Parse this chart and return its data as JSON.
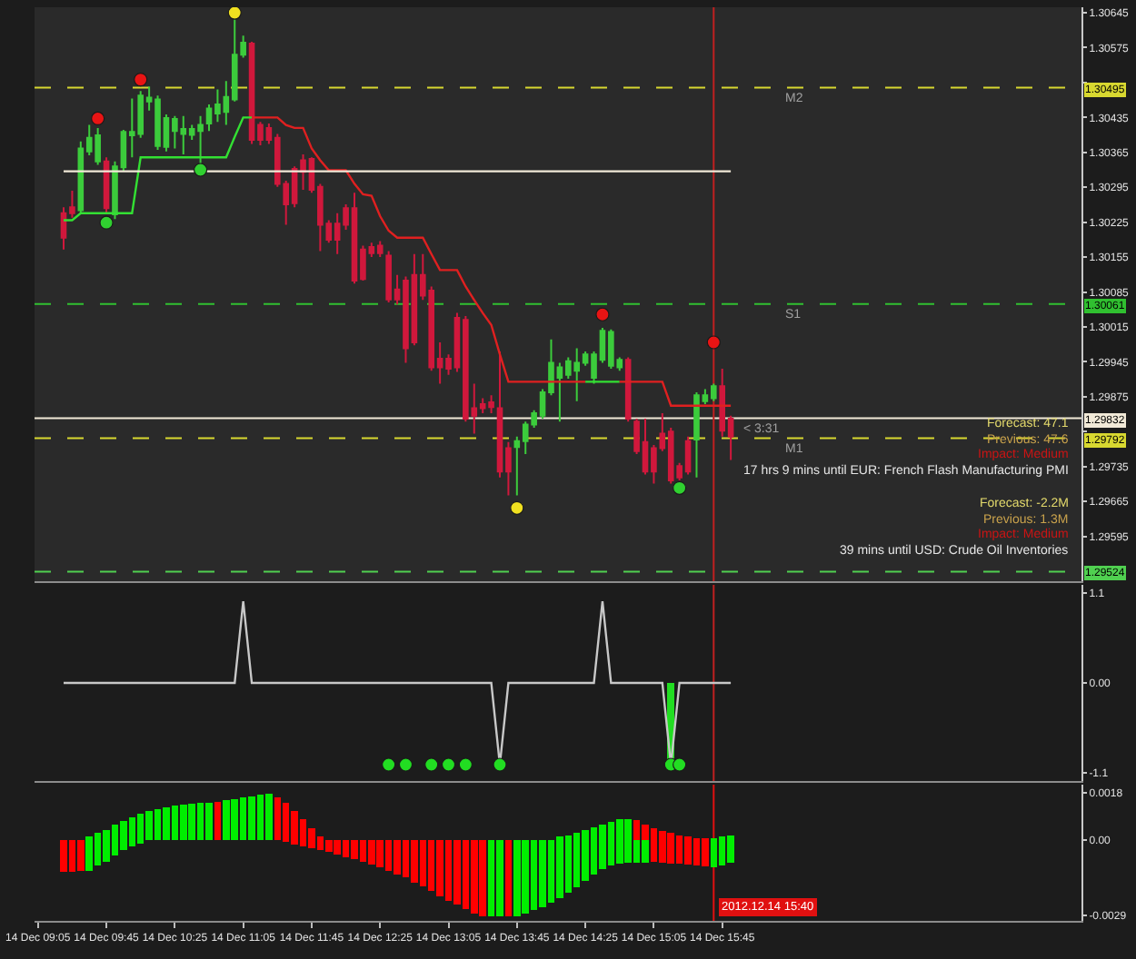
{
  "chart_data": [
    {
      "type": "candlestick",
      "x": [
        "2012-12-14T09:20",
        "2012-12-14T09:25",
        "2012-12-14T09:30",
        "2012-12-14T09:35",
        "2012-12-14T09:40",
        "2012-12-14T09:45",
        "2012-12-14T09:50",
        "2012-12-14T09:55",
        "2012-12-14T10:00",
        "2012-12-14T10:05",
        "2012-12-14T10:10",
        "2012-12-14T10:15",
        "2012-12-14T10:20",
        "2012-12-14T10:25",
        "2012-12-14T10:30",
        "2012-12-14T10:35",
        "2012-12-14T10:40",
        "2012-12-14T10:45",
        "2012-12-14T10:50",
        "2012-12-14T10:55",
        "2012-12-14T11:00",
        "2012-12-14T11:05",
        "2012-12-14T11:10",
        "2012-12-14T11:15",
        "2012-12-14T11:20",
        "2012-12-14T11:25",
        "2012-12-14T11:30",
        "2012-12-14T11:35",
        "2012-12-14T11:40",
        "2012-12-14T11:45",
        "2012-12-14T11:50",
        "2012-12-14T11:55",
        "2012-12-14T12:00",
        "2012-12-14T12:05",
        "2012-12-14T12:10",
        "2012-12-14T12:15",
        "2012-12-14T12:20",
        "2012-12-14T12:25",
        "2012-12-14T12:30",
        "2012-12-14T12:35",
        "2012-12-14T12:40",
        "2012-12-14T12:45",
        "2012-12-14T12:50",
        "2012-12-14T12:55",
        "2012-12-14T13:00",
        "2012-12-14T13:05",
        "2012-12-14T13:10",
        "2012-12-14T13:15",
        "2012-12-14T13:20",
        "2012-12-14T13:25",
        "2012-12-14T13:30",
        "2012-12-14T13:35",
        "2012-12-14T13:40",
        "2012-12-14T13:45",
        "2012-12-14T13:50",
        "2012-12-14T13:55",
        "2012-12-14T14:00",
        "2012-12-14T14:05",
        "2012-12-14T14:10",
        "2012-12-14T14:15",
        "2012-12-14T14:20",
        "2012-12-14T14:25",
        "2012-12-14T14:30",
        "2012-12-14T14:35",
        "2012-12-14T14:40",
        "2012-12-14T14:45",
        "2012-12-14T14:50",
        "2012-12-14T14:55",
        "2012-12-14T15:00",
        "2012-12-14T15:05",
        "2012-12-14T15:10",
        "2012-12-14T15:15",
        "2012-12-14T15:20",
        "2012-12-14T15:25",
        "2012-12-14T15:30",
        "2012-12-14T15:35",
        "2012-12-14T15:40",
        "2012-12-14T15:45",
        "2012-12-14T15:50"
      ],
      "ohlc": [
        [
          1.30243,
          1.30255,
          1.3017,
          1.30194
        ],
        [
          1.30255,
          1.30288,
          1.30234,
          1.30243
        ],
        [
          1.30249,
          1.30387,
          1.30243,
          1.30373
        ],
        [
          1.30367,
          1.3042,
          1.30359,
          1.30394
        ],
        [
          1.30347,
          1.30414,
          1.3034,
          1.30399
        ],
        [
          1.30347,
          1.30355,
          1.30243,
          1.30253
        ],
        [
          1.30241,
          1.30347,
          1.30231,
          1.30337
        ],
        [
          1.30335,
          1.3041,
          1.30328,
          1.30406
        ],
        [
          1.30399,
          1.30473,
          1.30355,
          1.30406
        ],
        [
          1.30402,
          1.30488,
          1.30394,
          1.30479
        ],
        [
          1.30467,
          1.30497,
          1.30449,
          1.30475
        ],
        [
          1.30378,
          1.30479,
          1.3037,
          1.30471
        ],
        [
          1.30376,
          1.30441,
          1.30367,
          1.30434
        ],
        [
          1.30408,
          1.30438,
          1.30373,
          1.30432
        ],
        [
          1.30402,
          1.30438,
          1.30361,
          1.30412
        ],
        [
          1.304,
          1.3042,
          1.3039,
          1.30412
        ],
        [
          1.30408,
          1.30438,
          1.30343,
          1.3042
        ],
        [
          1.30423,
          1.30461,
          1.30408,
          1.30453
        ],
        [
          1.30443,
          1.30491,
          1.30426,
          1.30461
        ],
        [
          1.30446,
          1.30508,
          1.3042,
          1.30476
        ],
        [
          1.30471,
          1.30632,
          1.30467,
          1.30561
        ],
        [
          1.30561,
          1.30599,
          1.30555,
          1.30585
        ],
        [
          1.30583,
          1.30587,
          1.30382,
          1.3039
        ],
        [
          1.3042,
          1.30426,
          1.30379,
          1.3039
        ],
        [
          1.30414,
          1.30423,
          1.30382,
          1.3039
        ],
        [
          1.30394,
          1.30402,
          1.30296,
          1.30302
        ],
        [
          1.30302,
          1.30308,
          1.3022,
          1.30261
        ],
        [
          1.30332,
          1.30337,
          1.30255,
          1.30263
        ],
        [
          1.30349,
          1.30361,
          1.3029,
          1.30326
        ],
        [
          1.30352,
          1.30355,
          1.30284,
          1.3029
        ],
        [
          1.30296,
          1.30302,
          1.30167,
          1.3022
        ],
        [
          1.30222,
          1.30229,
          1.30184,
          1.3019
        ],
        [
          1.30222,
          1.30243,
          1.30161,
          1.3019
        ],
        [
          1.30253,
          1.30261,
          1.3021,
          1.3022
        ],
        [
          1.30253,
          1.30284,
          1.30102,
          1.30108
        ],
        [
          1.3017,
          1.30178,
          1.30108,
          1.30111
        ],
        [
          1.30175,
          1.30184,
          1.30155,
          1.30163
        ],
        [
          1.30178,
          1.30187,
          1.30155,
          1.30163
        ],
        [
          1.30158,
          1.30167,
          1.30064,
          1.3007
        ],
        [
          1.3009,
          1.30119,
          1.3006,
          1.3007
        ],
        [
          1.30108,
          1.30116,
          1.29943,
          1.29972
        ],
        [
          1.30119,
          1.30161,
          1.29978,
          1.29984
        ],
        [
          1.30119,
          1.30161,
          1.30069,
          1.30078
        ],
        [
          1.30088,
          1.30096,
          1.29927,
          1.29934
        ],
        [
          1.29951,
          1.29984,
          1.29901,
          1.29934
        ],
        [
          1.29951,
          1.2996,
          1.29919,
          1.29931
        ],
        [
          1.30033,
          1.30043,
          1.29925,
          1.29934
        ],
        [
          1.30029,
          1.30037,
          1.29825,
          1.29831
        ],
        [
          1.29852,
          1.29901,
          1.29801,
          1.29837
        ],
        [
          1.2986,
          1.29872,
          1.29842,
          1.29852
        ],
        [
          1.29864,
          1.29878,
          1.29842,
          1.29854
        ],
        [
          1.29852,
          1.29966,
          1.29713,
          1.29725
        ],
        [
          1.29772,
          1.29784,
          1.29677,
          1.29725
        ],
        [
          1.29774,
          1.29795,
          1.29677,
          1.29786
        ],
        [
          1.29786,
          1.29825,
          1.2976,
          1.29819
        ],
        [
          1.29819,
          1.29848,
          1.29813,
          1.29842
        ],
        [
          1.29837,
          1.2989,
          1.29831,
          1.29884
        ],
        [
          1.29884,
          1.2999,
          1.29878,
          1.29943
        ],
        [
          1.29913,
          1.29943,
          1.29825,
          1.29934
        ],
        [
          1.29919,
          1.29954,
          1.29911,
          1.29946
        ],
        [
          1.29927,
          1.29972,
          1.29866,
          1.29943
        ],
        [
          1.29943,
          1.29966,
          1.29937,
          1.2996
        ],
        [
          1.29913,
          1.29966,
          1.29901,
          1.2996
        ],
        [
          1.29949,
          1.30013,
          1.29943,
          1.30007
        ],
        [
          1.29937,
          1.3001,
          1.29931,
          1.30005
        ],
        [
          1.29934,
          1.29954,
          1.29927,
          1.29949
        ],
        [
          1.29949,
          1.29954,
          1.29825,
          1.29831
        ],
        [
          1.29825,
          1.29831,
          1.2976,
          1.29766
        ],
        [
          1.29784,
          1.29831,
          1.29719,
          1.29725
        ],
        [
          1.29772,
          1.29778,
          1.29701,
          1.29725
        ],
        [
          1.29801,
          1.29842,
          1.29766,
          1.29772
        ],
        [
          1.29805,
          1.29813,
          1.29701,
          1.29707
        ],
        [
          1.29736,
          1.29742,
          1.29707,
          1.29713
        ],
        [
          1.29786,
          1.29795,
          1.29719,
          1.29725
        ],
        [
          1.29789,
          1.29884,
          1.29713,
          1.29878
        ],
        [
          1.29866,
          1.2989,
          1.2986,
          1.29878
        ],
        [
          1.29872,
          1.29901,
          1.29866,
          1.29896
        ],
        [
          1.29896,
          1.29931,
          1.29795,
          1.29807
        ],
        [
          1.29831,
          1.29837,
          1.29748,
          1.29795
        ]
      ],
      "colors": [
        "#d0183c",
        "#d0183c",
        "#3ccc3c",
        "#3ccc3c",
        "#3ccc3c",
        "#d0183c",
        "#3ccc3c",
        "#3ccc3c",
        "#3ccc3c",
        "#3ccc3c",
        "#3ccc3c",
        "#3ccc3c",
        "#3ccc3c",
        "#3ccc3c",
        "#3ccc3c",
        "#3ccc3c",
        "#3ccc3c",
        "#3ccc3c",
        "#3ccc3c",
        "#3ccc3c",
        "#3ccc3c",
        "#3ccc3c",
        "#d0183c",
        "#d0183c",
        "#d0183c",
        "#d0183c",
        "#d0183c",
        "#d0183c",
        "#d0183c",
        "#d0183c",
        "#d0183c",
        "#d0183c",
        "#d0183c",
        "#d0183c",
        "#d0183c",
        "#d0183c",
        "#d0183c",
        "#d0183c",
        "#d0183c",
        "#d0183c",
        "#d0183c",
        "#d0183c",
        "#d0183c",
        "#d0183c",
        "#d0183c",
        "#d0183c",
        "#d0183c",
        "#d0183c",
        "#d0183c",
        "#d0183c",
        "#d0183c",
        "#d0183c",
        "#d0183c",
        "#3ccc3c",
        "#3ccc3c",
        "#3ccc3c",
        "#3ccc3c",
        "#3ccc3c",
        "#3ccc3c",
        "#3ccc3c",
        "#3ccc3c",
        "#3ccc3c",
        "#3ccc3c",
        "#3ccc3c",
        "#3ccc3c",
        "#3ccc3c",
        "#d0183c",
        "#d0183c",
        "#d0183c",
        "#d0183c",
        "#d0183c",
        "#d0183c",
        "#d0183c",
        "#d0183c",
        "#3ccc3c",
        "#3ccc3c",
        "#3ccc3c",
        "#d0183c",
        "#d0183c"
      ],
      "xlim": [
        "2012-12-14T09:03",
        "2012-12-14T19:15"
      ],
      "ylim": [
        1.29505,
        1.30656
      ],
      "yticks": [
        1.30645,
        1.30575,
        {
          "value": 1.30505,
          "label": null
        },
        1.30435,
        1.30365,
        1.30295,
        1.30225,
        1.30155,
        1.30085,
        1.30015,
        1.29945,
        1.29875,
        {
          "value": 1.29805,
          "label": null
        },
        1.29735,
        1.29665,
        1.29595
      ],
      "tick_labels": "y",
      "series": [
        {
          "type": "line",
          "color": "#33e033",
          "x": [
            "2012-12-14T09:20",
            "2012-12-14T09:25",
            "2012-12-14T09:30",
            "2012-12-14T09:35",
            "2012-12-14T09:40",
            "2012-12-14T09:45",
            "2012-12-14T09:50",
            "2012-12-14T09:55",
            "2012-12-14T10:00",
            "2012-12-14T10:05",
            "2012-12-14T10:10",
            "2012-12-14T10:15",
            "2012-12-14T10:20",
            "2012-12-14T10:25",
            "2012-12-14T10:30",
            "2012-12-14T10:35",
            "2012-12-14T10:40",
            "2012-12-14T10:45",
            "2012-12-14T10:50",
            "2012-12-14T10:55",
            "2012-12-14T11:00",
            "2012-12-14T11:05",
            "2012-12-14T11:10"
          ],
          "values": [
            1.30229,
            1.30229,
            1.30243,
            1.30243,
            1.30243,
            1.30243,
            1.30243,
            1.30243,
            1.30243,
            1.30355,
            1.30355,
            1.30355,
            1.30355,
            1.30355,
            1.30355,
            1.30355,
            1.30355,
            1.30355,
            1.30355,
            1.30355,
            1.30396,
            1.30435,
            1.30435
          ]
        },
        {
          "type": "line",
          "color": "#e02020",
          "x": [
            "2012-12-14T11:10",
            "2012-12-14T11:15",
            "2012-12-14T11:20",
            "2012-12-14T11:25",
            "2012-12-14T11:30",
            "2012-12-14T11:35",
            "2012-12-14T11:40",
            "2012-12-14T11:45",
            "2012-12-14T11:50",
            "2012-12-14T11:55",
            "2012-12-14T12:00",
            "2012-12-14T12:05",
            "2012-12-14T12:10",
            "2012-12-14T12:15",
            "2012-12-14T12:20",
            "2012-12-14T12:25",
            "2012-12-14T12:30",
            "2012-12-14T12:35",
            "2012-12-14T12:40",
            "2012-12-14T12:45",
            "2012-12-14T12:50",
            "2012-12-14T12:55",
            "2012-12-14T13:00",
            "2012-12-14T13:05",
            "2012-12-14T13:10",
            "2012-12-14T13:15",
            "2012-12-14T13:20",
            "2012-12-14T13:25",
            "2012-12-14T13:30",
            "2012-12-14T13:35",
            "2012-12-14T13:40",
            "2012-12-14T13:45",
            "2012-12-14T13:50",
            "2012-12-14T13:55",
            "2012-12-14T14:00",
            "2012-12-14T14:05",
            "2012-12-14T14:10",
            "2012-12-14T14:15",
            "2012-12-14T14:20",
            "2012-12-14T14:25"
          ],
          "values": [
            1.30435,
            1.30435,
            1.30435,
            1.30435,
            1.3042,
            1.30414,
            1.30414,
            1.30373,
            1.30349,
            1.30329,
            1.30329,
            1.30329,
            1.30302,
            1.30281,
            1.30278,
            1.30237,
            1.30208,
            1.30194,
            1.30194,
            1.30194,
            1.30194,
            1.30161,
            1.30129,
            1.30129,
            1.30129,
            1.30096,
            1.30069,
            1.30043,
            1.30019,
            1.2996,
            1.29905,
            1.29905,
            1.29905,
            1.29905,
            1.29905,
            1.29905,
            1.29905,
            1.29905,
            1.29905,
            1.29905
          ]
        },
        {
          "type": "line",
          "color": "#33e033",
          "x": [
            "2012-12-14T14:25",
            "2012-12-14T14:30",
            "2012-12-14T14:35",
            "2012-12-14T14:40",
            "2012-12-14T14:45"
          ],
          "values": [
            1.29905,
            1.29905,
            1.29905,
            1.29905,
            1.29905
          ]
        },
        {
          "type": "line",
          "color": "#e02020",
          "x": [
            "2012-12-14T14:45",
            "2012-12-14T14:50",
            "2012-12-14T14:55",
            "2012-12-14T15:00",
            "2012-12-14T15:05",
            "2012-12-14T15:10",
            "2012-12-14T15:15",
            "2012-12-14T15:20",
            "2012-12-14T15:25",
            "2012-12-14T15:30",
            "2012-12-14T15:35",
            "2012-12-14T15:40",
            "2012-12-14T15:45",
            "2012-12-14T15:50"
          ],
          "values": [
            1.29905,
            1.29905,
            1.29905,
            1.29905,
            1.29905,
            1.29905,
            1.29857,
            1.29857,
            1.29857,
            1.29857,
            1.29857,
            1.29857,
            1.29857,
            1.29857
          ]
        },
        {
          "type": "line",
          "color": "#f2ead8",
          "x": [
            "2012-12-14T09:20",
            "2012-12-14T15:50"
          ],
          "values": [
            1.30327,
            1.30327
          ]
        },
        {
          "type": "scatter",
          "color": "#e81414",
          "marker": "circle",
          "x": [
            "2012-12-14T09:40",
            "2012-12-14T10:05",
            "2012-12-14T14:35",
            "2012-12-14T15:40"
          ],
          "values": [
            1.30433,
            1.30511,
            1.3004,
            1.29984
          ]
        },
        {
          "type": "scatter",
          "color": "#30d030",
          "marker": "circle",
          "x": [
            "2012-12-14T09:45",
            "2012-12-14T10:40",
            "2012-12-14T15:20"
          ],
          "values": [
            1.30224,
            1.3033,
            1.29692
          ]
        },
        {
          "type": "scatter",
          "color": "#f0e020",
          "marker": "circle",
          "x": [
            "2012-12-14T11:00",
            "2012-12-14T13:45"
          ],
          "values": [
            1.30645,
            1.29652
          ]
        }
      ],
      "ref_lines": [
        {
          "axis": "y",
          "value": 1.30495,
          "label": "1.30495",
          "color": "#d8d830",
          "line_style": "dashed"
        },
        {
          "axis": "y",
          "value": 1.30061,
          "label": "1.30061",
          "color": "#30c030",
          "line_style": "dashed"
        },
        {
          "axis": "y",
          "value": 1.29832,
          "label": "1.29832",
          "color": "#f2ead8"
        },
        {
          "axis": "y",
          "value": 1.29792,
          "label": "1.29792",
          "color": "#d8d830",
          "line_style": "dashed"
        },
        {
          "axis": "y",
          "value": 1.29524,
          "label": "1.29524",
          "color": "#50d050",
          "line_style": "dashed"
        },
        {
          "axis": "x",
          "value": "2012-12-14T15:40",
          "color": "#c02020"
        }
      ],
      "annotations": [
        "Forecast: 47.1",
        "Previous: 47.6",
        "Impact: Medium",
        "17 hrs 9 mins until EUR: French Flash Manufacturing PMI",
        "Forecast: -2.2M",
        "Previous: 1.3M",
        "Impact: Medium",
        "39 mins until USD: Crude Oil Inventories",
        {
          "text": "< 3:31",
          "x": "2012-12-14T15:55",
          "y": 1.29832
        },
        {
          "text": "M2",
          "x": "2012-12-14T16:20",
          "y": 1.30495
        },
        {
          "text": "S1",
          "x": "2012-12-14T16:20",
          "y": 1.30061
        },
        {
          "text": "M1",
          "x": "2012-12-14T16:20",
          "y": 1.29792
        }
      ]
    },
    {
      "type": "line",
      "x": [
        "2012-12-14T09:20",
        "2012-12-14T09:25",
        "2012-12-14T09:30",
        "2012-12-14T09:35",
        "2012-12-14T09:40",
        "2012-12-14T09:45",
        "2012-12-14T09:50",
        "2012-12-14T09:55",
        "2012-12-14T10:00",
        "2012-12-14T10:05",
        "2012-12-14T10:10",
        "2012-12-14T10:15",
        "2012-12-14T10:20",
        "2012-12-14T10:25",
        "2012-12-14T10:30",
        "2012-12-14T10:35",
        "2012-12-14T10:40",
        "2012-12-14T10:45",
        "2012-12-14T10:50",
        "2012-12-14T10:55",
        "2012-12-14T11:00",
        "2012-12-14T11:05",
        "2012-12-14T11:10",
        "2012-12-14T11:15",
        "2012-12-14T11:20",
        "2012-12-14T11:25",
        "2012-12-14T11:30",
        "2012-12-14T11:35",
        "2012-12-14T11:40",
        "2012-12-14T11:45",
        "2012-12-14T11:50",
        "2012-12-14T11:55",
        "2012-12-14T12:00",
        "2012-12-14T12:05",
        "2012-12-14T12:10",
        "2012-12-14T12:15",
        "2012-12-14T12:20",
        "2012-12-14T12:25",
        "2012-12-14T12:30",
        "2012-12-14T12:35",
        "2012-12-14T12:40",
        "2012-12-14T12:45",
        "2012-12-14T12:50",
        "2012-12-14T12:55",
        "2012-12-14T13:00",
        "2012-12-14T13:05",
        "2012-12-14T13:10",
        "2012-12-14T13:15",
        "2012-12-14T13:20",
        "2012-12-14T13:25",
        "2012-12-14T13:30",
        "2012-12-14T13:35",
        "2012-12-14T13:40",
        "2012-12-14T13:45",
        "2012-12-14T13:50",
        "2012-12-14T13:55",
        "2012-12-14T14:00",
        "2012-12-14T14:05",
        "2012-12-14T14:10",
        "2012-12-14T14:15",
        "2012-12-14T14:20",
        "2012-12-14T14:25",
        "2012-12-14T14:30",
        "2012-12-14T14:35",
        "2012-12-14T14:40",
        "2012-12-14T14:45",
        "2012-12-14T14:50",
        "2012-12-14T14:55",
        "2012-12-14T15:00",
        "2012-12-14T15:05",
        "2012-12-14T15:10",
        "2012-12-14T15:15",
        "2012-12-14T15:20",
        "2012-12-14T15:25",
        "2012-12-14T15:30",
        "2012-12-14T15:35",
        "2012-12-14T15:40",
        "2012-12-14T15:45",
        "2012-12-14T15:50"
      ],
      "xlim": [
        "2012-12-14T09:03",
        "2012-12-14T19:15"
      ],
      "ylim": [
        -1.2,
        1.2
      ],
      "yticks": [
        1.1,
        {
          "value": 0,
          "label": "0.00"
        },
        -1.1
      ],
      "tick_labels": "y",
      "series": [
        {
          "color": "#c8c8c8",
          "values": [
            0,
            0,
            0,
            0,
            0,
            0,
            0,
            0,
            0,
            0,
            0,
            0,
            0,
            0,
            0,
            0,
            0,
            0,
            0,
            0,
            0,
            1,
            0,
            0,
            0,
            0,
            0,
            0,
            0,
            0,
            0,
            0,
            0,
            0,
            0,
            0,
            0,
            0,
            0,
            0,
            0,
            0,
            0,
            0,
            0,
            0,
            0,
            0,
            0,
            0,
            0,
            -1,
            0,
            0,
            0,
            0,
            0,
            0,
            0,
            0,
            0,
            0,
            0,
            1,
            0,
            0,
            0,
            0,
            0,
            0,
            0,
            -1,
            0,
            0,
            0,
            0,
            0,
            0,
            0
          ]
        },
        {
          "type": "bar",
          "color": "#22dd22",
          "x": [
            "2012-12-14T15:15"
          ],
          "values": [
            -1
          ]
        },
        {
          "type": "scatter",
          "color": "#22dd22",
          "marker": "circle",
          "x": [
            "2012-12-14T12:30",
            "2012-12-14T12:40",
            "2012-12-14T12:55",
            "2012-12-14T13:05",
            "2012-12-14T13:15",
            "2012-12-14T13:35",
            "2012-12-14T15:15",
            "2012-12-14T15:20"
          ],
          "values": [
            -1,
            -1,
            -1,
            -1,
            -1,
            -1,
            -1,
            -1
          ]
        }
      ],
      "ref_lines": [
        {
          "axis": "x",
          "value": "2012-12-14T15:40",
          "color": "#c02020"
        }
      ]
    },
    {
      "type": "bar",
      "x": [
        "2012-12-14T09:20",
        "2012-12-14T09:25",
        "2012-12-14T09:30",
        "2012-12-14T09:35",
        "2012-12-14T09:40",
        "2012-12-14T09:45",
        "2012-12-14T09:50",
        "2012-12-14T09:55",
        "2012-12-14T10:00",
        "2012-12-14T10:05",
        "2012-12-14T10:10",
        "2012-12-14T10:15",
        "2012-12-14T10:20",
        "2012-12-14T10:25",
        "2012-12-14T10:30",
        "2012-12-14T10:35",
        "2012-12-14T10:40",
        "2012-12-14T10:45",
        "2012-12-14T10:50",
        "2012-12-14T10:55",
        "2012-12-14T11:00",
        "2012-12-14T11:05",
        "2012-12-14T11:10",
        "2012-12-14T11:15",
        "2012-12-14T11:20",
        "2012-12-14T11:25",
        "2012-12-14T11:30",
        "2012-12-14T11:35",
        "2012-12-14T11:40",
        "2012-12-14T11:45",
        "2012-12-14T11:50",
        "2012-12-14T11:55",
        "2012-12-14T12:00",
        "2012-12-14T12:05",
        "2012-12-14T12:10",
        "2012-12-14T12:15",
        "2012-12-14T12:20",
        "2012-12-14T12:25",
        "2012-12-14T12:30",
        "2012-12-14T12:35",
        "2012-12-14T12:40",
        "2012-12-14T12:45",
        "2012-12-14T12:50",
        "2012-12-14T12:55",
        "2012-12-14T13:00",
        "2012-12-14T13:05",
        "2012-12-14T13:10",
        "2012-12-14T13:15",
        "2012-12-14T13:20",
        "2012-12-14T13:25",
        "2012-12-14T13:30",
        "2012-12-14T13:35",
        "2012-12-14T13:40",
        "2012-12-14T13:45",
        "2012-12-14T13:50",
        "2012-12-14T13:55",
        "2012-12-14T14:00",
        "2012-12-14T14:05",
        "2012-12-14T14:10",
        "2012-12-14T14:15",
        "2012-12-14T14:20",
        "2012-12-14T14:25",
        "2012-12-14T14:30",
        "2012-12-14T14:35",
        "2012-12-14T14:40",
        "2012-12-14T14:45",
        "2012-12-14T14:50",
        "2012-12-14T14:55",
        "2012-12-14T15:00",
        "2012-12-14T15:05",
        "2012-12-14T15:10",
        "2012-12-14T15:15",
        "2012-12-14T15:20",
        "2012-12-14T15:25",
        "2012-12-14T15:30",
        "2012-12-14T15:35",
        "2012-12-14T15:40",
        "2012-12-14T15:45",
        "2012-12-14T15:50"
      ],
      "xlim": [
        "2012-12-14T09:03",
        "2012-12-14T19:15"
      ],
      "ylim": [
        -0.0031,
        0.0021
      ],
      "xticks": [
        {
          "value": "2012-12-14T09:05",
          "label": "14 Dec 09:05"
        },
        {
          "value": "2012-12-14T09:45",
          "label": "14 Dec 09:45"
        },
        {
          "value": "2012-12-14T10:25",
          "label": "14 Dec 10:25"
        },
        {
          "value": "2012-12-14T11:05",
          "label": "14 Dec 11:05"
        },
        {
          "value": "2012-12-14T11:45",
          "label": "14 Dec 11:45"
        },
        {
          "value": "2012-12-14T12:25",
          "label": "14 Dec 12:25"
        },
        {
          "value": "2012-12-14T13:05",
          "label": "14 Dec 13:05"
        },
        {
          "value": "2012-12-14T13:45",
          "label": "14 Dec 13:45"
        },
        {
          "value": "2012-12-14T14:25",
          "label": "14 Dec 14:25"
        },
        {
          "value": "2012-12-14T15:05",
          "label": "14 Dec 15:05"
        },
        {
          "value": "2012-12-14T15:45",
          "label": "14 Dec 15:45"
        }
      ],
      "yticks": [
        0.0018,
        {
          "value": 0,
          "label": "0.00"
        },
        -0.0029
      ],
      "series": [
        {
          "values": [
            null,
            null,
            null,
            0.00012,
            0.00025,
            0.00038,
            0.00059,
            0.00072,
            0.00085,
            0.00098,
            0.00108,
            0.00116,
            0.00124,
            0.00129,
            0.00134,
            0.00137,
            0.0014,
            0.00142,
            0.00145,
            0.0015,
            0.00155,
            0.00161,
            0.00166,
            0.00171,
            0.00174,
            0.00163,
            0.00142,
            0.00111,
            0.00077,
            0.00043,
            0.00012,
            null,
            null,
            null,
            null,
            null,
            null,
            null,
            null,
            null,
            null,
            null,
            null,
            null,
            null,
            null,
            null,
            null,
            null,
            null,
            null,
            null,
            null,
            null,
            null,
            null,
            null,
            null,
            0.00012,
            0.00017,
            0.00025,
            0.00038,
            0.00048,
            0.00059,
            0.00069,
            0.00077,
            0.0008,
            0.00074,
            0.00059,
            0.00043,
            0.00033,
            0.00025,
            0.00017,
            0.00012,
            7e-05,
            4e-05,
            7e-05,
            0.00012,
            0.00017
          ],
          "colors": [
            null,
            null,
            null,
            "#00ee00",
            "#00ee00",
            "#00ee00",
            "#00ee00",
            "#00ee00",
            "#00ee00",
            "#00ee00",
            "#00ee00",
            "#00ee00",
            "#00ee00",
            "#00ee00",
            "#00ee00",
            "#00ee00",
            "#00ee00",
            "#00ee00",
            "#ff0000",
            "#00ee00",
            "#00ee00",
            "#00ee00",
            "#00ee00",
            "#00ee00",
            "#00ee00",
            "#ff0000",
            "#ff0000",
            "#ff0000",
            "#ff0000",
            "#ff0000",
            "#ff0000",
            null,
            null,
            null,
            null,
            null,
            null,
            null,
            null,
            null,
            null,
            null,
            null,
            null,
            null,
            null,
            null,
            null,
            null,
            null,
            null,
            null,
            null,
            null,
            null,
            null,
            null,
            null,
            "#00ee00",
            "#00ee00",
            "#00ee00",
            "#00ee00",
            "#00ee00",
            "#00ee00",
            "#00ee00",
            "#00ee00",
            "#00ee00",
            "#ff0000",
            "#ff0000",
            "#ff0000",
            "#ff0000",
            "#ff0000",
            "#ff0000",
            "#ff0000",
            "#ff0000",
            "#ff0000",
            "#00ee00",
            "#00ee00",
            "#00ee00"
          ]
        },
        {
          "values": [
            -0.00124,
            -0.00124,
            -0.00119,
            -0.00119,
            -0.00098,
            -0.00085,
            -0.00061,
            -0.0004,
            -0.00027,
            -0.00014,
            null,
            null,
            null,
            null,
            null,
            null,
            null,
            null,
            null,
            null,
            null,
            null,
            null,
            null,
            null,
            null,
            -9e-05,
            -0.0002,
            -0.00027,
            -0.00033,
            -0.0004,
            -0.00048,
            -0.00056,
            -0.00067,
            -0.00074,
            -0.00085,
            -0.00095,
            -0.00106,
            -0.00119,
            -0.00132,
            -0.00144,
            -0.00163,
            -0.00179,
            -0.00197,
            -0.00215,
            -0.00234,
            -0.00249,
            -0.00265,
            -0.00281,
            -0.00291,
            -0.00294,
            -0.00294,
            -0.00294,
            -0.00291,
            -0.00281,
            -0.0027,
            -0.00257,
            -0.00242,
            -0.00223,
            -0.00202,
            -0.00181,
            -0.00158,
            -0.00134,
            -0.00113,
            -0.00098,
            -0.0009,
            -0.00087,
            -0.00087,
            -0.00087,
            -0.00085,
            -0.00087,
            -0.0009,
            -0.00093,
            -0.00095,
            -0.00098,
            -0.00103,
            -0.00106,
            -0.00098,
            -0.00087
          ],
          "colors": [
            "#ff0000",
            "#ff0000",
            "#ff0000",
            "#00ee00",
            "#00ee00",
            "#00ee00",
            "#00ee00",
            "#00ee00",
            "#00ee00",
            "#00ee00",
            null,
            null,
            null,
            null,
            null,
            null,
            null,
            null,
            null,
            null,
            null,
            null,
            null,
            null,
            null,
            null,
            "#ff0000",
            "#ff0000",
            "#ff0000",
            "#ff0000",
            "#ff0000",
            "#ff0000",
            "#ff0000",
            "#ff0000",
            "#ff0000",
            "#ff0000",
            "#ff0000",
            "#ff0000",
            "#ff0000",
            "#ff0000",
            "#ff0000",
            "#ff0000",
            "#ff0000",
            "#ff0000",
            "#ff0000",
            "#ff0000",
            "#ff0000",
            "#ff0000",
            "#ff0000",
            "#ff0000",
            "#00ee00",
            "#00ee00",
            "#ff0000",
            "#00ee00",
            "#00ee00",
            "#00ee00",
            "#00ee00",
            "#00ee00",
            "#00ee00",
            "#00ee00",
            "#00ee00",
            "#00ee00",
            "#00ee00",
            "#00ee00",
            "#00ee00",
            "#00ee00",
            "#00ee00",
            "#00ee00",
            "#00ee00",
            "#ff0000",
            "#ff0000",
            "#ff0000",
            "#ff0000",
            "#ff0000",
            "#ff0000",
            "#ff0000",
            "#00ee00",
            "#00ee00",
            "#00ee00"
          ]
        }
      ],
      "ref_lines": [
        {
          "axis": "x",
          "value": "2012-12-14T15:40",
          "label": "2012.12.14 15:40",
          "color": "#e01010"
        }
      ]
    }
  ]
}
